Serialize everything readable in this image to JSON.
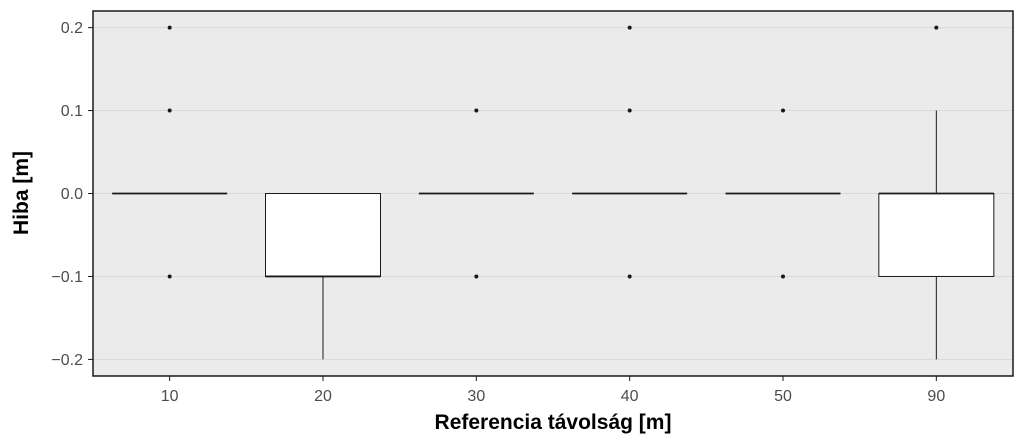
{
  "chart_data": {
    "type": "box",
    "title": "",
    "xlabel": "Referencia távolság [m]",
    "ylabel": "Hiba [m]",
    "categories": [
      "10",
      "20",
      "30",
      "40",
      "50",
      "90"
    ],
    "ylim": [
      -0.22,
      0.22
    ],
    "yticks": [
      -0.2,
      -0.1,
      0.0,
      0.1,
      0.2
    ],
    "ytick_labels": [
      "−0.2",
      "−0.1",
      "0.0",
      "0.1",
      "0.2"
    ],
    "grid": true,
    "legend": "none",
    "boxes": [
      {
        "category": "10",
        "q1": 0.0,
        "median": 0.0,
        "q3": 0.0,
        "whisker_low": 0.0,
        "whisker_high": 0.0,
        "outliers": [
          0.2,
          0.1,
          -0.1
        ]
      },
      {
        "category": "20",
        "q1": -0.1,
        "median": -0.1,
        "q3": 0.0,
        "whisker_low": -0.2,
        "whisker_high": 0.0,
        "outliers": []
      },
      {
        "category": "30",
        "q1": 0.0,
        "median": 0.0,
        "q3": 0.0,
        "whisker_low": 0.0,
        "whisker_high": 0.0,
        "outliers": [
          0.1,
          -0.1
        ]
      },
      {
        "category": "40",
        "q1": 0.0,
        "median": 0.0,
        "q3": 0.0,
        "whisker_low": 0.0,
        "whisker_high": 0.0,
        "outliers": [
          0.2,
          0.1,
          -0.1
        ]
      },
      {
        "category": "50",
        "q1": 0.0,
        "median": 0.0,
        "q3": 0.0,
        "whisker_low": 0.0,
        "whisker_high": 0.0,
        "outliers": [
          0.1,
          -0.1
        ]
      },
      {
        "category": "90",
        "q1": -0.1,
        "median": 0.0,
        "q3": 0.0,
        "whisker_low": -0.2,
        "whisker_high": 0.1,
        "outliers": [
          0.2
        ]
      }
    ],
    "colors": {
      "panel_background": "#ebebeb",
      "grid": "#d9d9d9",
      "box_fill": "#ffffff",
      "line": "#1a1a1a",
      "axis_text": "#4d4d4d",
      "title_text": "#000000"
    }
  }
}
